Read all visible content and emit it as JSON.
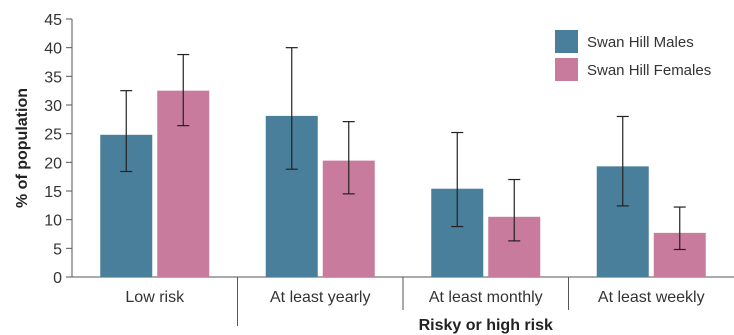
{
  "chart_data": {
    "type": "bar",
    "categories": [
      "Low risk",
      "At least yearly",
      "At least monthly",
      "At least weekly"
    ],
    "series": [
      {
        "name": "Swan Hill Males",
        "color": "#4a7f9b",
        "values": [
          24.8,
          28.1,
          15.4,
          19.3
        ],
        "error_low": [
          18.4,
          18.8,
          8.8,
          12.4
        ],
        "error_high": [
          32.5,
          40.0,
          25.2,
          28.0
        ]
      },
      {
        "name": "Swan Hill Females",
        "color": "#c97b9e",
        "values": [
          32.5,
          20.3,
          10.5,
          7.7
        ],
        "error_low": [
          26.4,
          14.5,
          6.3,
          4.8
        ],
        "error_high": [
          38.8,
          27.1,
          17.0,
          12.2
        ]
      }
    ],
    "ylabel": "% of population",
    "xlabel": "",
    "group_label": "Risky or high risk",
    "ylim": [
      0,
      45
    ],
    "yticks": [
      0,
      5,
      10,
      15,
      20,
      25,
      30,
      35,
      40,
      45
    ],
    "grid": false,
    "legend_position": "top-right"
  }
}
